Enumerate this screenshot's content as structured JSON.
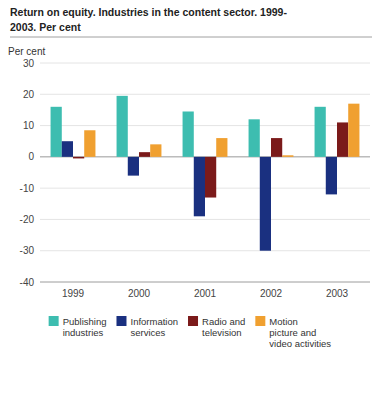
{
  "chart_data": {
    "type": "bar",
    "title": "Return on equity. Industries in the content sector. 1999-\n2003. Per cent",
    "y_label": "Per cent",
    "categories": [
      "1999",
      "2000",
      "2001",
      "2002",
      "2003"
    ],
    "series": [
      {
        "name": "Publishing\nindustries",
        "color": "#3DBDB0",
        "values": [
          16,
          19.5,
          14.5,
          12,
          16
        ]
      },
      {
        "name": "Information\nservices",
        "color": "#1A3080",
        "values": [
          5,
          -6,
          -19,
          -30,
          -12
        ]
      },
      {
        "name": "Radio and\ntelevision",
        "color": "#7B1A1A",
        "values": [
          -0.5,
          1.5,
          -13,
          6,
          11
        ]
      },
      {
        "name": "Motion\npicture and\nvideo activities",
        "color": "#F0A030",
        "values": [
          8.5,
          4,
          6,
          0.5,
          17
        ]
      }
    ],
    "ylim": [
      -40,
      30
    ],
    "yticks": [
      -40,
      -30,
      -20,
      -10,
      0,
      10,
      20,
      30
    ],
    "grid": true,
    "legend": "bottom"
  }
}
